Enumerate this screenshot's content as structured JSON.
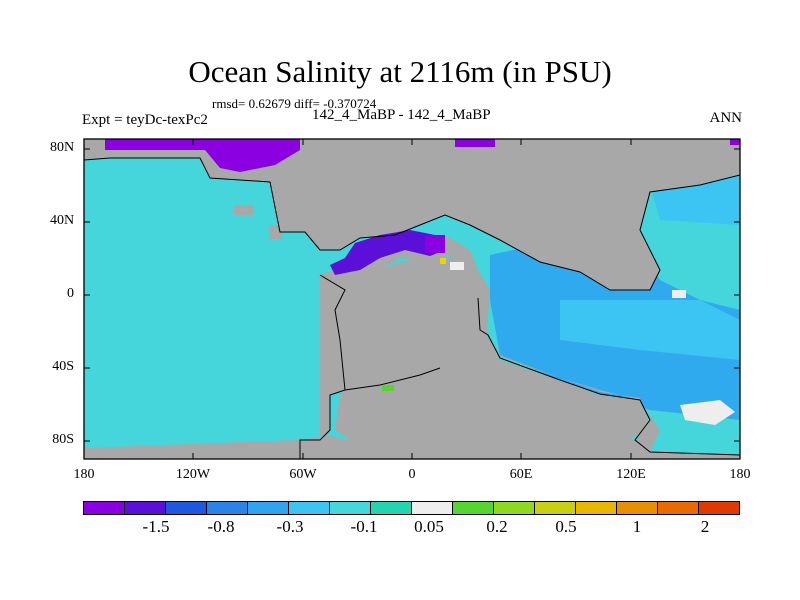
{
  "header": {
    "title": "Ocean Salinity at 2116m (in PSU)",
    "stats": "rmsd= 0.62679 diff= -0.370724",
    "expt": "Expt = teyDc-texPc2",
    "period": "142_4_MaBP - 142_4_MaBP",
    "season": "ANN"
  },
  "axes": {
    "y_ticks": [
      "80N",
      "40N",
      "0",
      "40S",
      "80S"
    ],
    "x_ticks": [
      "180",
      "120W",
      "60W",
      "0",
      "60E",
      "120E",
      "180"
    ]
  },
  "colorbar": {
    "colors": [
      "#8a00e0",
      "#5a10d8",
      "#1e58e0",
      "#2a84e6",
      "#30a4f0",
      "#3cc4f2",
      "#44d8dc",
      "#22d4b0",
      "#eeeeee",
      "#56d430",
      "#90d820",
      "#c8d010",
      "#e8b800",
      "#e89000",
      "#e86a00",
      "#e03a00"
    ],
    "labels": [
      "-1.5",
      "-0.8",
      "-0.3",
      "-0.1",
      "0.05",
      "0.2",
      "0.5",
      "1",
      "2"
    ]
  },
  "map_colors": {
    "land": "#a8a8a8",
    "ocean_pacific": "#44d6da",
    "ocean_tethys": "#30aaee",
    "ocean_band": "#3cc4f2",
    "strong_negative": "#8a00e0",
    "negative": "#5a10d8",
    "near_zero": "#eeeeee",
    "positive": "#56d430",
    "positive_yellow": "#e8d800"
  }
}
